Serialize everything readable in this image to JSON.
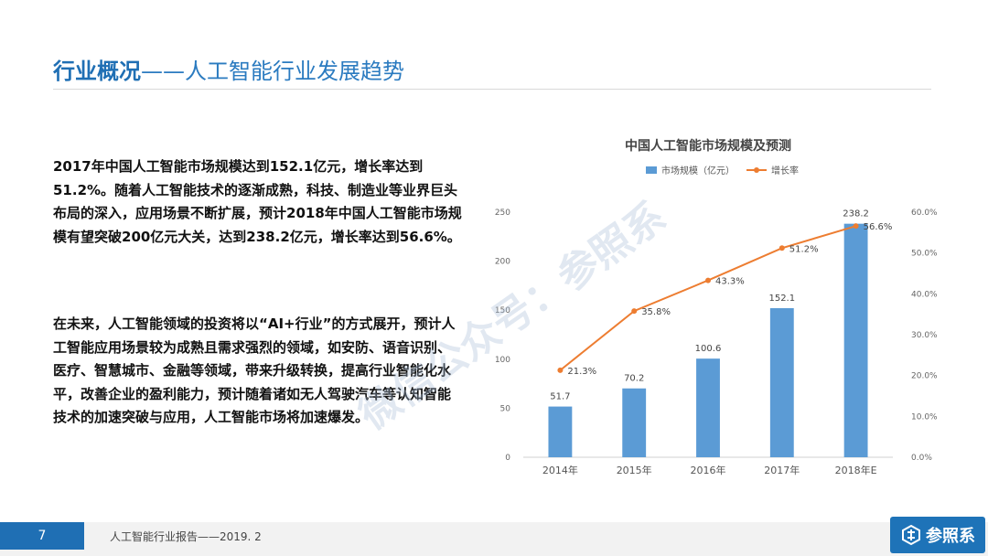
{
  "header": {
    "title_bold": "行业概况",
    "title_rest": "——人工智能行业发展趋势"
  },
  "body": {
    "paragraph1": "2017年中国人工智能市场规模达到152.1亿元，增长率达到51.2%。随着人工智能技术的逐渐成熟，科技、制造业等业界巨头布局的深入，应用场景不断扩展，预计2018年中国人工智能市场规模有望突破200亿元大关，达到238.2亿元，增长率达到56.6%。",
    "paragraph2": "在未来，人工智能领域的投资将以“AI+行业”的方式展开，预计人工智能应用场景较为成熟且需求强烈的领域，如安防、语音识别、医疗、智慧城市、金融等领域，带来升级转换，提高行业智能化水平，改善企业的盈利能力，预计随着诸如无人驾驶汽车等认知智能技术的加速突破与应用，人工智能市场将加速爆发。"
  },
  "watermark": "微信公众号：参照系",
  "footer": {
    "page_number": "7",
    "report": "人工智能行业报告——2019. 2",
    "logo_text": "参照系"
  },
  "colors": {
    "accent": "#1f6fb4",
    "bar": "#5b9bd5",
    "line": "#ed7d31"
  },
  "chart_data": {
    "type": "bar",
    "title": "中国人工智能市场规模及预测",
    "categories": [
      "2014年",
      "2015年",
      "2016年",
      "2017年",
      "2018年E"
    ],
    "series": [
      {
        "name": "市场规模（亿元）",
        "type": "bar",
        "axis": "left",
        "values": [
          51.7,
          70.2,
          100.6,
          152.1,
          238.2
        ],
        "labels": [
          "51.7",
          "70.2",
          "100.6",
          "152.1",
          "238.2"
        ]
      },
      {
        "name": "增长率",
        "type": "line",
        "axis": "right",
        "values": [
          21.3,
          35.8,
          43.3,
          51.2,
          56.6
        ],
        "labels": [
          "21.3%",
          "35.8%",
          "43.3%",
          "51.2%",
          "56.6%"
        ]
      }
    ],
    "ylim_left": [
      0,
      250
    ],
    "yticks_left": [
      "0",
      "50",
      "100",
      "150",
      "200",
      "250"
    ],
    "ylim_right": [
      0,
      60
    ],
    "yticks_right": [
      "0.0%",
      "10.0%",
      "20.0%",
      "30.0%",
      "40.0%",
      "50.0%",
      "60.0%"
    ],
    "grid": false,
    "legend": "top"
  }
}
